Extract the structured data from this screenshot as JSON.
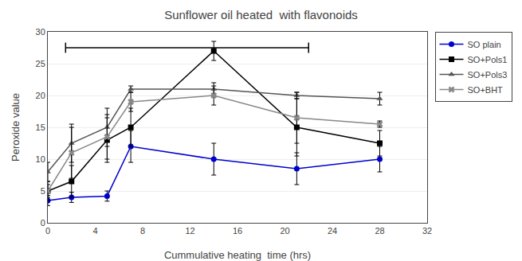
{
  "chart_data": {
    "type": "line",
    "title": "Sunflower oil heated  with flavonoids",
    "x_label": "Cummulative heating  time (hrs)",
    "y_label": "Peroxide value",
    "x": [
      0,
      2,
      5,
      7,
      14,
      21,
      28
    ],
    "series": [
      {
        "name": "SO plain",
        "color": "#0000CD",
        "marker": "circle",
        "values": [
          3.5,
          4.0,
          4.2,
          12.0,
          10.0,
          8.5,
          10.0
        ],
        "yerr": [
          0.8,
          0.8,
          0.8,
          2.5,
          2.5,
          2.5,
          2.0
        ]
      },
      {
        "name": "SO+Pols1",
        "color": "#000000",
        "marker": "square",
        "values": [
          5.0,
          6.5,
          13.0,
          15.0,
          27.0,
          15.0,
          12.5
        ],
        "yerr": [
          1.5,
          2.5,
          3.5,
          3.0,
          1.5,
          4.5,
          2.0
        ]
      },
      {
        "name": "SO+Pols3",
        "color": "#555555",
        "marker": "triangle-up",
        "values": [
          8.0,
          12.5,
          15.0,
          21.0,
          21.0,
          20.0,
          19.5
        ],
        "yerr": [
          1.5,
          3.0,
          3.0,
          0.5,
          1.0,
          0.5,
          1.0
        ]
      },
      {
        "name": "SO+BHT",
        "color": "#888888",
        "marker": "x",
        "values": [
          5.0,
          11.0,
          13.5,
          19.0,
          20.0,
          16.5,
          15.5
        ],
        "yerr": [
          1.0,
          4.0,
          3.5,
          1.5,
          1.5,
          4.0,
          0.5
        ]
      }
    ],
    "annotation_bar": {
      "x_start": 1.5,
      "x_end": 22.0,
      "y": 27.5,
      "tick_height": 0.8
    },
    "xlim": [
      0,
      32
    ],
    "ylim": [
      0,
      30
    ],
    "xticks": [
      0,
      4,
      8,
      12,
      16,
      20,
      24,
      28,
      32
    ],
    "yticks": [
      0,
      5,
      10,
      15,
      20,
      25,
      30
    ],
    "grid": "y",
    "legend": "upper right"
  }
}
